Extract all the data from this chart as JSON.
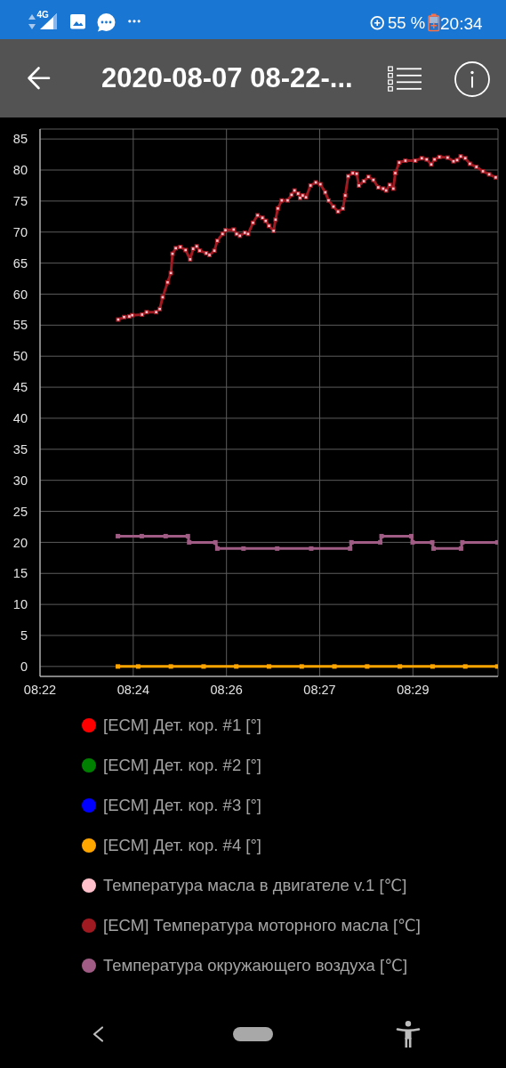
{
  "chart_data": {
    "type": "line",
    "title": "2020-08-07 08-22-...",
    "annotations": [
      "4G",
      "55 %",
      "20:34"
    ],
    "xlim": [
      8.37,
      8.51
    ],
    "xticks": [
      {
        "value": 8.37,
        "label": "08:22"
      },
      {
        "value": 8.3985,
        "label": "08:24"
      },
      {
        "value": 8.427,
        "label": "08:26"
      },
      {
        "value": 8.4555,
        "label": "08:27"
      },
      {
        "value": 8.484,
        "label": "08:29"
      }
    ],
    "ylim": [
      -1.6,
      86.6
    ],
    "yticks": [
      0,
      5,
      10,
      15,
      20,
      25,
      30,
      35,
      40,
      45,
      50,
      55,
      60,
      65,
      70,
      75,
      80,
      85
    ],
    "grid": true,
    "legend": "bottom",
    "marker": "square",
    "series": [
      {
        "name": "[ECM] Дет. кор. #1 [°]",
        "color": "#ff0000",
        "values": [
          null
        ]
      },
      {
        "name": "[ECM] Дет. кор. #2 [°]",
        "color": "#008000",
        "values": [
          null
        ]
      },
      {
        "name": "[ECM] Дет. кор. #3 [°]",
        "color": "#0000ff",
        "values": [
          null
        ]
      },
      {
        "name": "[ECM] Дет. кор. #4 [°]",
        "color": "#ffa500",
        "x": [
          8.3938,
          8.4,
          8.41,
          8.42,
          8.43,
          8.44,
          8.45,
          8.46,
          8.47,
          8.48,
          8.49,
          8.5,
          8.5098
        ],
        "values": [
          0,
          0,
          0,
          0,
          0,
          0,
          0,
          0,
          0,
          0,
          0,
          0,
          0
        ]
      },
      {
        "name": "Температура масла в двигателе v.1 [℃]",
        "color": "#ffc0cb",
        "type": "scatter",
        "x": [
          8.3939,
          8.3957,
          8.3973,
          8.3982,
          8.4012,
          8.4026,
          8.4055,
          8.4066,
          8.4075,
          8.409,
          8.41,
          8.4105,
          8.4115,
          8.4129,
          8.4145,
          8.4159,
          8.4168,
          8.4179,
          8.4188,
          8.4208,
          8.4218,
          8.4233,
          8.4242,
          8.4258,
          8.4267,
          8.4292,
          8.4301,
          8.4311,
          8.4326,
          8.4336,
          8.4351,
          8.4365,
          8.438,
          8.439,
          8.44,
          8.4414,
          8.442,
          8.4427,
          8.4439,
          8.4457,
          8.4469,
          8.4478,
          8.4489,
          8.4495,
          8.4503,
          8.4513,
          8.4527,
          8.4543,
          8.4557,
          8.4572,
          8.4582,
          8.4597,
          8.4611,
          8.4626,
          8.4633,
          8.4642,
          8.4656,
          8.4668,
          8.4675,
          8.469,
          8.4704,
          8.4719,
          8.4734,
          8.4749,
          8.4758,
          8.4769,
          8.478,
          8.4786,
          8.4798,
          8.4817,
          8.4847,
          8.4867,
          8.4882,
          8.4896,
          8.4906,
          8.4921,
          8.4946,
          8.4964,
          8.4975,
          8.4986,
          8.5,
          8.5014,
          8.5034,
          8.5054,
          8.5073,
          8.5093
        ],
        "values": [
          55.9,
          56.3,
          56.4,
          56.6,
          56.7,
          57.1,
          57.1,
          57.6,
          59.5,
          61.9,
          63.4,
          66.5,
          67.4,
          67.6,
          67.1,
          65.6,
          67.3,
          67.7,
          67.0,
          66.6,
          66.3,
          67.0,
          68.6,
          69.7,
          70.3,
          70.4,
          69.7,
          69.4,
          69.9,
          69.7,
          71.5,
          72.7,
          72.3,
          71.8,
          71.0,
          70.2,
          72.0,
          73.8,
          75.1,
          75.1,
          76.0,
          76.7,
          76.2,
          75.5,
          75.9,
          75.6,
          77.5,
          78.0,
          77.7,
          76.4,
          75.1,
          74.1,
          73.3,
          73.8,
          75.9,
          79.0,
          79.5,
          79.4,
          77.5,
          78.2,
          78.9,
          78.4,
          77.2,
          77.0,
          76.7,
          77.6,
          77.0,
          79.5,
          81.2,
          81.5,
          81.5,
          81.9,
          81.7,
          80.9,
          81.7,
          82.1,
          82.0,
          81.4,
          81.6,
          82.2,
          81.9,
          81.0,
          80.5,
          79.8,
          79.3,
          78.8
        ]
      },
      {
        "name": "[ECM] Температура моторного масла [℃]",
        "color": "#a01a22",
        "x": [
          8.3939,
          8.3957,
          8.3973,
          8.3982,
          8.4012,
          8.4026,
          8.4055,
          8.4066,
          8.4075,
          8.409,
          8.41,
          8.4105,
          8.4115,
          8.4129,
          8.4145,
          8.4159,
          8.4168,
          8.4179,
          8.4188,
          8.4208,
          8.4218,
          8.4233,
          8.4242,
          8.4258,
          8.4267,
          8.4292,
          8.4301,
          8.4311,
          8.4326,
          8.4336,
          8.4351,
          8.4365,
          8.438,
          8.439,
          8.44,
          8.4414,
          8.442,
          8.4427,
          8.4439,
          8.4457,
          8.4469,
          8.4478,
          8.4489,
          8.4495,
          8.4503,
          8.4513,
          8.4527,
          8.4543,
          8.4557,
          8.4572,
          8.4582,
          8.4597,
          8.4611,
          8.4626,
          8.4633,
          8.4642,
          8.4656,
          8.4668,
          8.4675,
          8.469,
          8.4704,
          8.4719,
          8.4734,
          8.4749,
          8.4758,
          8.4769,
          8.478,
          8.4786,
          8.4798,
          8.4817,
          8.4847,
          8.4867,
          8.4882,
          8.4896,
          8.4906,
          8.4921,
          8.4946,
          8.4964,
          8.4975,
          8.4986,
          8.5,
          8.5014,
          8.5034,
          8.5054,
          8.5073,
          8.5093
        ],
        "values": [
          55.9,
          56.3,
          56.4,
          56.6,
          56.7,
          57.1,
          57.1,
          57.6,
          59.5,
          61.9,
          63.4,
          66.5,
          67.4,
          67.6,
          67.1,
          65.6,
          67.3,
          67.7,
          67.0,
          66.6,
          66.3,
          67.0,
          68.6,
          69.7,
          70.3,
          70.4,
          69.7,
          69.4,
          69.9,
          69.7,
          71.5,
          72.7,
          72.3,
          71.8,
          71.0,
          70.2,
          72.0,
          73.8,
          75.1,
          75.1,
          76.0,
          76.7,
          76.2,
          75.5,
          75.9,
          75.6,
          77.5,
          78.0,
          77.7,
          76.4,
          75.1,
          74.1,
          73.3,
          73.8,
          75.9,
          79.0,
          79.5,
          79.4,
          77.5,
          78.2,
          78.9,
          78.4,
          77.2,
          77.0,
          76.7,
          77.6,
          77.0,
          79.5,
          81.2,
          81.5,
          81.5,
          81.9,
          81.7,
          80.9,
          81.7,
          82.1,
          82.0,
          81.4,
          81.6,
          82.2,
          81.9,
          81.0,
          80.5,
          79.8,
          79.3,
          78.8
        ]
      },
      {
        "name": "Температура окружающего воздуха [℃]",
        "color": "#a05c84",
        "x": [
          8.3938,
          8.4011,
          8.4084,
          8.4152,
          8.4156,
          8.4236,
          8.4242,
          8.4322,
          8.4425,
          8.4529,
          8.4648,
          8.4652,
          8.474,
          8.4744,
          8.4835,
          8.4839,
          8.4899,
          8.4903,
          8.4987,
          8.4991,
          8.5098
        ],
        "values": [
          21,
          21,
          21,
          21,
          20,
          20,
          19,
          19,
          19,
          19,
          19,
          20,
          20,
          21,
          21,
          20,
          20,
          19,
          19,
          20,
          20
        ]
      }
    ]
  }
}
